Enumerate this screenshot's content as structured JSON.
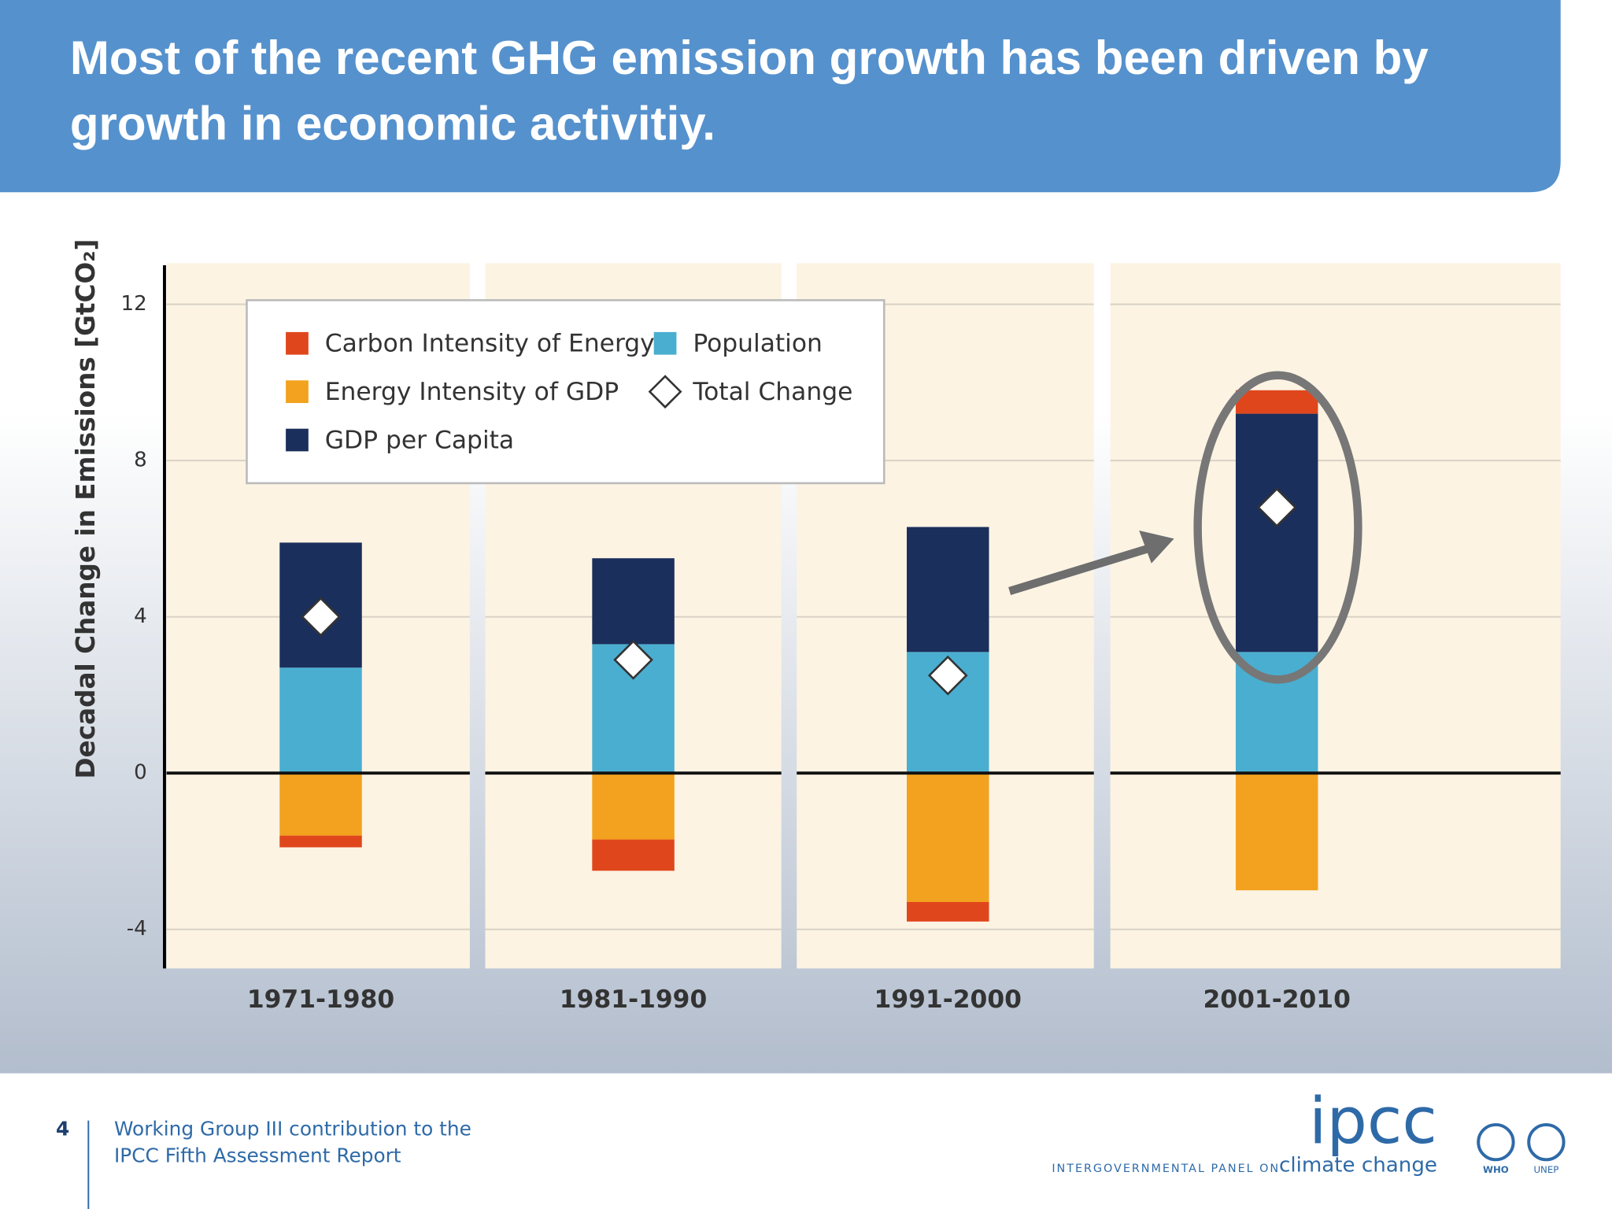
{
  "header": {
    "title": "Most of the recent GHG emission growth has been driven by growth in economic activitiy."
  },
  "chart_data": {
    "type": "stacked_bar",
    "y_label": "Decadal Change in Emissions [GtCO₂]",
    "categories": [
      "1971-1980",
      "1981-1990",
      "1991-2000",
      "2001-2010"
    ],
    "series": [
      {
        "name": "Carbon Intensity of Energy",
        "color": "#e0461c",
        "values": [
          -0.3,
          -0.8,
          -0.5,
          0.6
        ]
      },
      {
        "name": "Energy Intensity of GDP",
        "color": "#f2a21e",
        "values": [
          -1.6,
          -1.7,
          -3.3,
          -3.0
        ]
      },
      {
        "name": "GDP per Capita",
        "color": "#1b2f5c",
        "values": [
          3.2,
          2.2,
          3.2,
          6.1
        ]
      },
      {
        "name": "Population",
        "color": "#4aaed0",
        "values": [
          2.7,
          3.3,
          3.1,
          3.1
        ]
      }
    ],
    "total": {
      "name": "Total Change",
      "values": [
        4.0,
        2.9,
        2.5,
        6.8
      ]
    },
    "ylim": [
      -5,
      13
    ],
    "yticks": [
      -4,
      0,
      4,
      8,
      12
    ],
    "grid": true
  },
  "footer": {
    "page": "4",
    "line1": "Working Group III contribution to the",
    "line2": "IPCC Fifth Assessment Report",
    "logo": "ipcc",
    "org": "INTERGOVERNMENTAL PANEL ON",
    "org2": "climate change",
    "who": "WHO",
    "unep": "UNEP"
  }
}
